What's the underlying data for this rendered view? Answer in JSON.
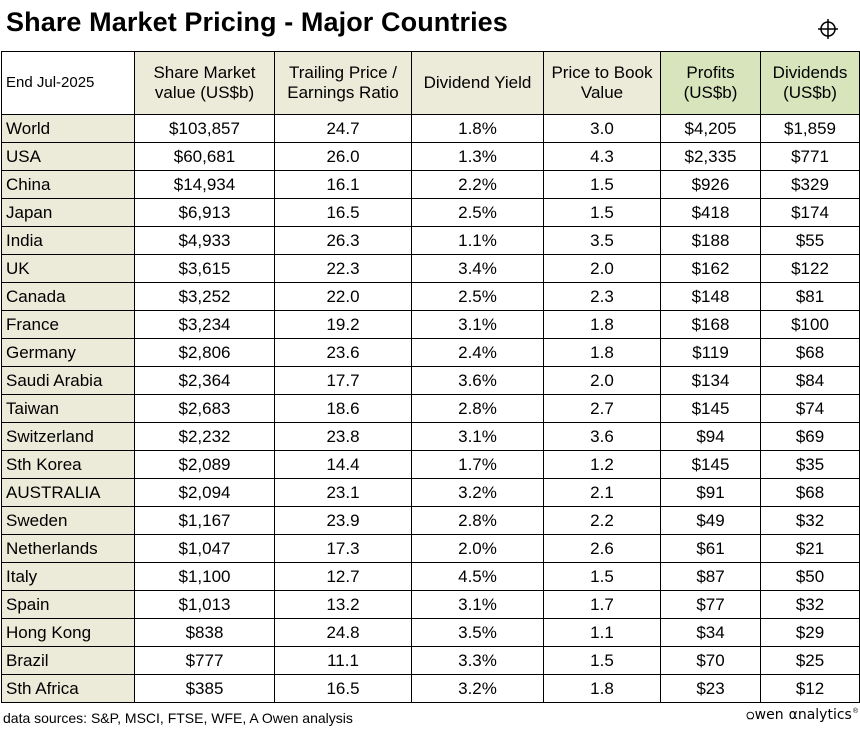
{
  "title": "Share Market Pricing - Major Countries",
  "as_of": "End Jul-2025",
  "footer": "data sources: S&P, MSCI, FTSE, WFE, A Owen analysis",
  "logo": {
    "prefix": "wen",
    "brand": "αnalytics",
    "registered": "®"
  },
  "colors": {
    "header_beige": "#ecead9",
    "header_green": "#d8e4bc",
    "row_label_beige": "#ecead9"
  },
  "icons": {
    "top_right": "crosshair-icon",
    "logo_mark": "owen-circle-icon"
  },
  "chart_data": {
    "type": "table",
    "title": "Share Market Pricing - Major Countries",
    "columns": [
      "End Jul-2025",
      "Share Market value (US$b)",
      "Trailing Price / Earnings Ratio",
      "Dividend Yield",
      "Price to Book Value",
      "Profits (US$b)",
      "Dividends (US$b)"
    ],
    "rows": [
      [
        "World",
        "$103,857",
        "24.7",
        "1.8%",
        "3.0",
        "$4,205",
        "$1,859"
      ],
      [
        "USA",
        "$60,681",
        "26.0",
        "1.3%",
        "4.3",
        "$2,335",
        "$771"
      ],
      [
        "China",
        "$14,934",
        "16.1",
        "2.2%",
        "1.5",
        "$926",
        "$329"
      ],
      [
        "Japan",
        "$6,913",
        "16.5",
        "2.5%",
        "1.5",
        "$418",
        "$174"
      ],
      [
        "India",
        "$4,933",
        "26.3",
        "1.1%",
        "3.5",
        "$188",
        "$55"
      ],
      [
        "UK",
        "$3,615",
        "22.3",
        "3.4%",
        "2.0",
        "$162",
        "$122"
      ],
      [
        "Canada",
        "$3,252",
        "22.0",
        "2.5%",
        "2.3",
        "$148",
        "$81"
      ],
      [
        "France",
        "$3,234",
        "19.2",
        "3.1%",
        "1.8",
        "$168",
        "$100"
      ],
      [
        "Germany",
        "$2,806",
        "23.6",
        "2.4%",
        "1.8",
        "$119",
        "$68"
      ],
      [
        "Saudi Arabia",
        "$2,364",
        "17.7",
        "3.6%",
        "2.0",
        "$134",
        "$84"
      ],
      [
        "Taiwan",
        "$2,683",
        "18.6",
        "2.8%",
        "2.7",
        "$145",
        "$74"
      ],
      [
        "Switzerland",
        "$2,232",
        "23.8",
        "3.1%",
        "3.6",
        "$94",
        "$69"
      ],
      [
        "Sth Korea",
        "$2,089",
        "14.4",
        "1.7%",
        "1.2",
        "$145",
        "$35"
      ],
      [
        "AUSTRALIA",
        "$2,094",
        "23.1",
        "3.2%",
        "2.1",
        "$91",
        "$68"
      ],
      [
        "Sweden",
        "$1,167",
        "23.9",
        "2.8%",
        "2.2",
        "$49",
        "$32"
      ],
      [
        "Netherlands",
        "$1,047",
        "17.3",
        "2.0%",
        "2.6",
        "$61",
        "$21"
      ],
      [
        "Italy",
        "$1,100",
        "12.7",
        "4.5%",
        "1.5",
        "$87",
        "$50"
      ],
      [
        "Spain",
        "$1,013",
        "13.2",
        "3.1%",
        "1.7",
        "$77",
        "$32"
      ],
      [
        "Hong Kong",
        "$838",
        "24.8",
        "3.5%",
        "1.1",
        "$34",
        "$29"
      ],
      [
        "Brazil",
        "$777",
        "11.1",
        "3.3%",
        "1.5",
        "$70",
        "$25"
      ],
      [
        "Sth Africa",
        "$385",
        "16.5",
        "3.2%",
        "1.8",
        "$23",
        "$12"
      ]
    ]
  }
}
